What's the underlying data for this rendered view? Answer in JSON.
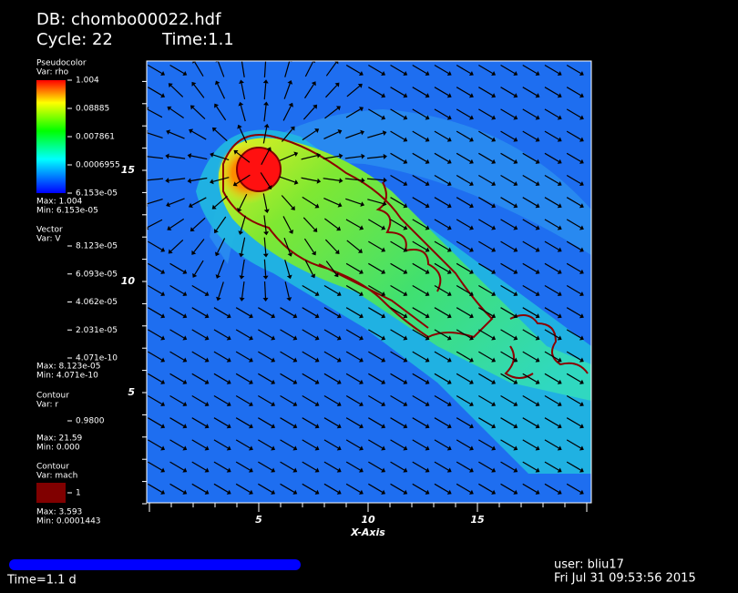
{
  "header": {
    "db": "DB: chombo00022.hdf",
    "cycle": "Cycle: 22",
    "time": "Time:1.1"
  },
  "legends": [
    {
      "title": "Pseudocolor",
      "var": "Var: rho",
      "labels": [
        "1.004",
        "0.08885",
        "0.007861",
        "0.0006955",
        "6.153e-05"
      ],
      "max": "Max: 1.004",
      "min": "Min: 6.153e-05"
    },
    {
      "title": "Vector",
      "var": "Var: V",
      "labels": [
        "8.123e-05",
        "6.093e-05",
        "4.062e-05",
        "2.031e-05",
        "4.071e-10"
      ],
      "max": "Max: 8.123e-05",
      "min": "Min: 4.071e-10"
    },
    {
      "title": "Contour",
      "var": "Var: r",
      "labels": [
        "0.9800"
      ],
      "max": "Max: 21.59",
      "min": "Min: 0.000"
    },
    {
      "title": "Contour",
      "var": "Var: mach",
      "labels": [
        "1"
      ],
      "max": "Max: 3.593",
      "min": "Min: 0.0001443"
    }
  ],
  "axes": {
    "x_ticks": [
      "5",
      "10",
      "15"
    ],
    "x_title": "X-Axis",
    "y_ticks": [
      "15",
      "10",
      "5"
    ]
  },
  "footer": {
    "time": "Time=1.1 d",
    "user": "user: bliu17",
    "date": "Fri Jul 31 09:53:56 2015"
  }
}
